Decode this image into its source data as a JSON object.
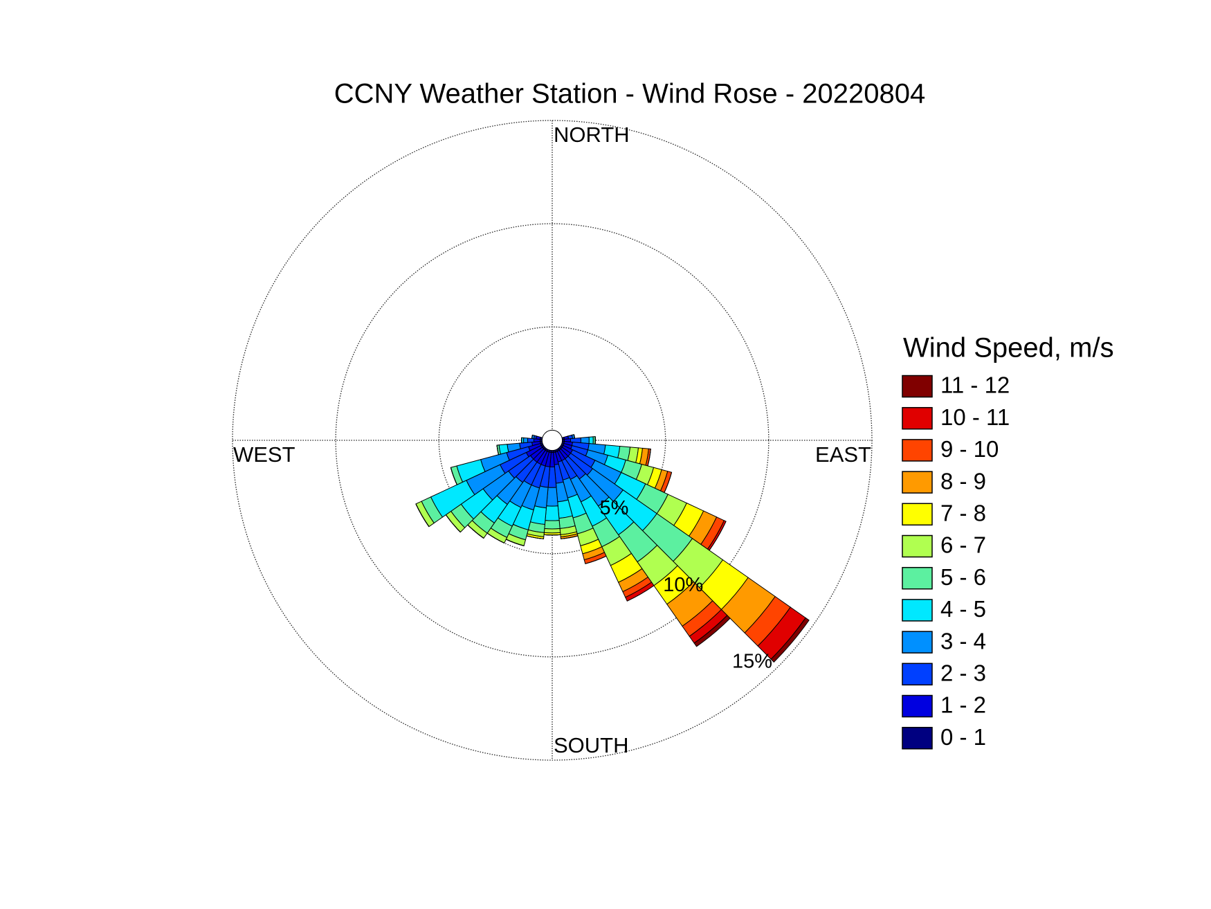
{
  "chart_data": {
    "type": "windrose",
    "title": "CCNY Weather Station - Wind Rose - 20220804",
    "directions": [
      "NORTH",
      "EAST",
      "SOUTH",
      "WEST"
    ],
    "legend_title": "Wind Speed, m/s",
    "x": [
      80,
      90,
      100,
      110,
      120,
      130,
      140,
      150,
      160,
      170,
      180,
      190,
      200,
      210,
      220,
      230,
      240,
      250,
      260,
      270,
      280
    ],
    "bin_width": 10,
    "ylim": [
      0,
      15
    ],
    "yticks": [
      {
        "value": 5,
        "label": "5%"
      },
      {
        "value": 10,
        "label": "10%"
      },
      {
        "value": 15,
        "label": "15%"
      }
    ],
    "grid": true,
    "series": [
      {
        "name": "0 - 1",
        "color": "#000080",
        "values": [
          0.1,
          0.1,
          0.1,
          0.1,
          0.1,
          0.1,
          0.1,
          0.1,
          0.1,
          0.1,
          0.1,
          0.1,
          0.1,
          0.1,
          0.1,
          0.1,
          0.1,
          0.1,
          0.1,
          0.1,
          0.1
        ]
      },
      {
        "name": "1 - 2",
        "color": "#0000e0",
        "values": [
          0.2,
          0.3,
          0.4,
          0.4,
          0.5,
          0.5,
          0.5,
          0.5,
          0.5,
          0.6,
          0.7,
          0.7,
          0.7,
          0.7,
          0.7,
          0.7,
          0.8,
          0.6,
          0.4,
          0.3,
          0.2
        ]
      },
      {
        "name": "2 - 3",
        "color": "#0040ff",
        "values": [
          0.2,
          0.5,
          0.8,
          0.8,
          1.2,
          1.3,
          1.2,
          1.0,
          0.9,
          0.9,
          1.0,
          1.0,
          1.1,
          1.1,
          1.2,
          1.3,
          1.4,
          1.1,
          0.6,
          0.3,
          0.1
        ]
      },
      {
        "name": "3 - 4",
        "color": "#0090ff",
        "values": [
          0.1,
          0.4,
          0.8,
          1.0,
          1.4,
          1.8,
          1.6,
          1.2,
          0.9,
          0.9,
          0.9,
          1.0,
          1.1,
          1.2,
          1.3,
          1.5,
          1.8,
          1.3,
          0.6,
          0.2,
          0.1
        ]
      },
      {
        "name": "4 - 5",
        "color": "#00e8ff",
        "values": [
          0,
          0.2,
          0.7,
          0.9,
          1.3,
          2.0,
          1.7,
          1.3,
          1.0,
          0.8,
          0.7,
          0.8,
          1.0,
          1.0,
          1.1,
          1.3,
          1.9,
          1.2,
          0.4,
          0.1,
          0
        ]
      },
      {
        "name": "5 - 6",
        "color": "#5cf0a0",
        "values": [
          0,
          0.1,
          0.5,
          0.8,
          1.2,
          2.1,
          1.6,
          1.1,
          0.8,
          0.5,
          0.4,
          0.4,
          0.5,
          0.6,
          0.6,
          0.6,
          0.5,
          0.3,
          0.1,
          0,
          0
        ]
      },
      {
        "name": "6 - 7",
        "color": "#b0ff50",
        "values": [
          0,
          0,
          0.4,
          0.6,
          1.0,
          1.8,
          1.4,
          1.0,
          0.6,
          0.3,
          0.2,
          0.2,
          0.3,
          0.3,
          0.3,
          0.3,
          0.3,
          0,
          0,
          0,
          0
        ]
      },
      {
        "name": "7 - 8",
        "color": "#ffff00",
        "values": [
          0,
          0,
          0.2,
          0.4,
          0.9,
          1.5,
          1.1,
          0.9,
          0.4,
          0.1,
          0.1,
          0.1,
          0,
          0,
          0,
          0,
          0,
          0,
          0,
          0,
          0
        ]
      },
      {
        "name": "8 - 9",
        "color": "#ff9a00",
        "values": [
          0,
          0,
          0.3,
          0.3,
          0.7,
          1.6,
          1.3,
          0.5,
          0.3,
          0.1,
          0,
          0,
          0,
          0,
          0,
          0,
          0,
          0,
          0,
          0,
          0
        ]
      },
      {
        "name": "9 - 10",
        "color": "#ff4400",
        "values": [
          0,
          0,
          0.1,
          0.2,
          0.4,
          0.9,
          0.6,
          0.3,
          0.2,
          0,
          0,
          0,
          0,
          0,
          0,
          0,
          0,
          0,
          0,
          0,
          0
        ]
      },
      {
        "name": "10 - 11",
        "color": "#e00000",
        "values": [
          0,
          0,
          0,
          0,
          0.1,
          0.9,
          0.4,
          0.2,
          0,
          0,
          0,
          0,
          0,
          0,
          0,
          0,
          0,
          0,
          0,
          0,
          0
        ]
      },
      {
        "name": "11 - 12",
        "color": "#800000",
        "values": [
          0,
          0,
          0,
          0,
          0,
          0.2,
          0.2,
          0,
          0,
          0,
          0,
          0,
          0,
          0,
          0,
          0,
          0,
          0,
          0,
          0,
          0
        ]
      }
    ]
  }
}
